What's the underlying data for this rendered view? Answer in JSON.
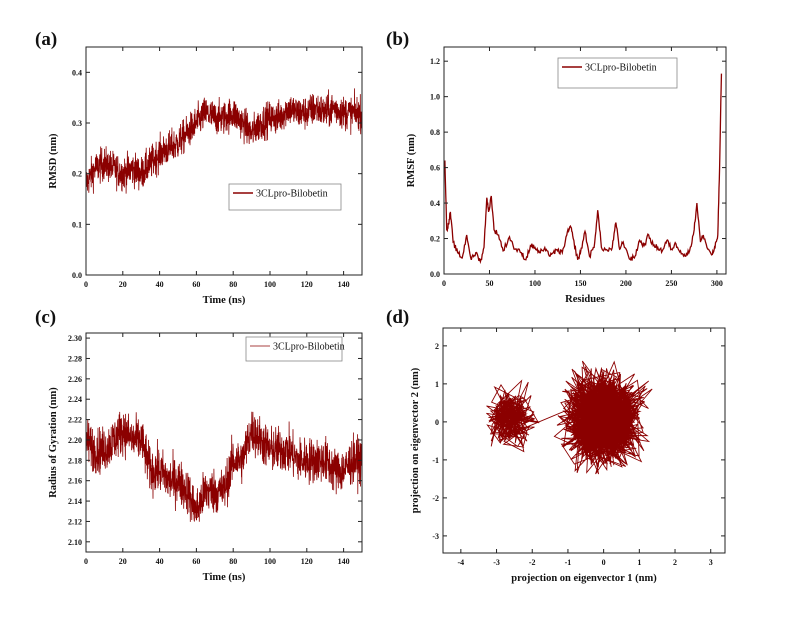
{
  "chart_data": [
    {
      "panel_label": "(a)",
      "type": "line",
      "xlabel": "Time (ns)",
      "ylabel": "RMSD (nm)",
      "xlim": [
        0,
        150
      ],
      "ylim": [
        0,
        0.45
      ],
      "xticks": [
        "0",
        "20",
        "40",
        "60",
        "80",
        "100",
        "120",
        "140"
      ],
      "yticks": [
        "0.0",
        "0.1",
        "0.2",
        "0.3",
        "0.4"
      ],
      "legend": {
        "position": "center-right",
        "entries": [
          "3CLpro-Bilobetin"
        ]
      },
      "grid": false,
      "color": "#8b0000",
      "series": [
        {
          "name": "3CLpro-Bilobetin",
          "x": [
            0,
            5,
            10,
            15,
            20,
            25,
            30,
            35,
            40,
            45,
            50,
            55,
            60,
            65,
            70,
            75,
            80,
            85,
            90,
            95,
            100,
            105,
            110,
            115,
            120,
            125,
            130,
            135,
            140,
            145,
            150
          ],
          "y": [
            0.18,
            0.21,
            0.22,
            0.21,
            0.2,
            0.21,
            0.2,
            0.22,
            0.24,
            0.25,
            0.26,
            0.28,
            0.3,
            0.32,
            0.31,
            0.31,
            0.32,
            0.3,
            0.28,
            0.3,
            0.31,
            0.31,
            0.33,
            0.32,
            0.32,
            0.33,
            0.32,
            0.33,
            0.32,
            0.32,
            0.32
          ],
          "fluctuation": 0.03
        }
      ]
    },
    {
      "panel_label": "(b)",
      "type": "line",
      "xlabel": "Residues",
      "ylabel": "RMSF (nm)",
      "xlim": [
        0,
        310
      ],
      "ylim": [
        0,
        1.28
      ],
      "xticks": [
        "0",
        "50",
        "100",
        "150",
        "200",
        "250",
        "300"
      ],
      "yticks": [
        "0.0",
        "0.2",
        "0.4",
        "0.6",
        "0.8",
        "1.0",
        "1.2"
      ],
      "legend": {
        "position": "top-right",
        "entries": [
          "3CLpro-Bilobetin"
        ]
      },
      "grid": false,
      "color": "#8b0000",
      "series": [
        {
          "name": "3CLpro-Bilobetin",
          "x": [
            1,
            3,
            5,
            7,
            10,
            15,
            20,
            25,
            30,
            35,
            40,
            44,
            47,
            49,
            52,
            55,
            60,
            65,
            72,
            78,
            85,
            90,
            95,
            100,
            105,
            110,
            115,
            120,
            125,
            130,
            135,
            139,
            142,
            147,
            150,
            155,
            160,
            165,
            169,
            173,
            180,
            185,
            189,
            193,
            197,
            205,
            210,
            215,
            220,
            225,
            230,
            235,
            240,
            245,
            250,
            255,
            260,
            265,
            270,
            275,
            278,
            282,
            285,
            290,
            295,
            298,
            301,
            303,
            305
          ],
          "y": [
            0.64,
            0.25,
            0.28,
            0.35,
            0.18,
            0.12,
            0.09,
            0.22,
            0.08,
            0.12,
            0.07,
            0.15,
            0.43,
            0.35,
            0.44,
            0.25,
            0.22,
            0.13,
            0.21,
            0.14,
            0.12,
            0.08,
            0.16,
            0.15,
            0.12,
            0.14,
            0.11,
            0.12,
            0.13,
            0.12,
            0.22,
            0.27,
            0.2,
            0.08,
            0.12,
            0.24,
            0.1,
            0.15,
            0.36,
            0.15,
            0.13,
            0.15,
            0.29,
            0.14,
            0.18,
            0.08,
            0.1,
            0.19,
            0.16,
            0.22,
            0.16,
            0.15,
            0.13,
            0.19,
            0.14,
            0.17,
            0.13,
            0.1,
            0.13,
            0.25,
            0.4,
            0.18,
            0.22,
            0.14,
            0.11,
            0.15,
            0.22,
            0.6,
            1.13
          ]
        }
      ]
    },
    {
      "panel_label": "(c)",
      "type": "line",
      "xlabel": "Time (ns)",
      "ylabel": "Radius of Gyration (nm)",
      "xlim": [
        0,
        150
      ],
      "ylim": [
        2.09,
        2.305
      ],
      "xticks": [
        "0",
        "20",
        "40",
        "60",
        "80",
        "100",
        "120",
        "140"
      ],
      "yticks": [
        "2.10",
        "2.12",
        "2.14",
        "2.16",
        "2.18",
        "2.20",
        "2.22",
        "2.24",
        "2.26",
        "2.28",
        "2.30"
      ],
      "legend": {
        "position": "top-right",
        "entries": [
          "3CLpro-Bilobetin"
        ]
      },
      "grid": false,
      "color": "#8b0000",
      "series": [
        {
          "name": "3CLpro-Bilobetin",
          "x": [
            0,
            5,
            10,
            15,
            20,
            25,
            30,
            35,
            40,
            45,
            50,
            55,
            60,
            65,
            70,
            75,
            80,
            85,
            90,
            95,
            100,
            105,
            110,
            115,
            120,
            125,
            130,
            135,
            140,
            145,
            150
          ],
          "y": [
            2.2,
            2.19,
            2.19,
            2.2,
            2.21,
            2.2,
            2.2,
            2.17,
            2.17,
            2.16,
            2.16,
            2.15,
            2.13,
            2.15,
            2.15,
            2.15,
            2.18,
            2.18,
            2.21,
            2.2,
            2.19,
            2.19,
            2.19,
            2.18,
            2.18,
            2.18,
            2.18,
            2.17,
            2.17,
            2.18,
            2.18
          ],
          "fluctuation": 0.02
        }
      ]
    },
    {
      "panel_label": "(d)",
      "type": "line",
      "xlabel": "projection on eigenvector 1 (nm)",
      "ylabel": "projection on eigenvector 2 (nm)",
      "xlim": [
        -4.5,
        3.4
      ],
      "ylim": [
        -3.45,
        2.47
      ],
      "xticks": [
        "-4",
        "-3",
        "-2",
        "-1",
        "0",
        "1",
        "2",
        "3"
      ],
      "yticks": [
        "-3",
        "-2",
        "-1",
        "0",
        "1",
        "2"
      ],
      "grid": false,
      "color": "#8b0000",
      "clusters": [
        {
          "center": [
            -2.6,
            0.1
          ],
          "spread": [
            0.6,
            0.6
          ]
        },
        {
          "center": [
            0.0,
            0.1
          ],
          "spread": [
            1.0,
            1.0
          ]
        }
      ]
    }
  ]
}
